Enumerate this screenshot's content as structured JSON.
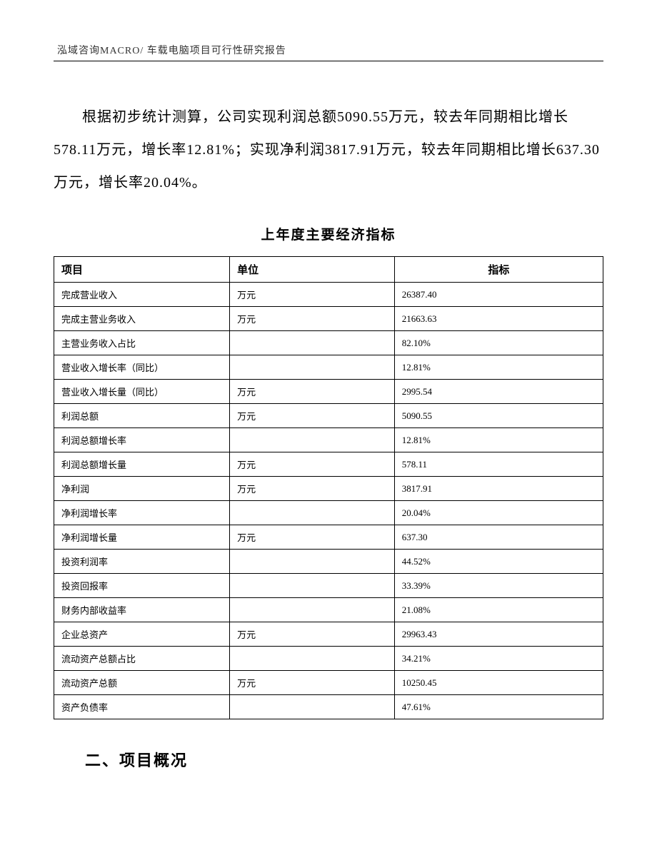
{
  "header": {
    "text": "泓域咨询MACRO/    车载电脑项目可行性研究报告"
  },
  "paragraph": {
    "text": "根据初步统计测算，公司实现利润总额5090.55万元，较去年同期相比增长578.11万元，增长率12.81%；实现净利润3817.91万元，较去年同期相比增长637.30万元，增长率20.04%。"
  },
  "table": {
    "title": "上年度主要经济指标",
    "type": "table",
    "columns": [
      {
        "key": "item",
        "label": "项目"
      },
      {
        "key": "unit",
        "label": "单位"
      },
      {
        "key": "value",
        "label": "指标"
      }
    ],
    "fontsize_header": 15,
    "fontsize_body": 13,
    "border_color": "#000000",
    "background_color": "#ffffff",
    "rows": [
      {
        "item": "完成营业收入",
        "unit": "万元",
        "value": "26387.40"
      },
      {
        "item": "完成主营业务收入",
        "unit": "万元",
        "value": "21663.63"
      },
      {
        "item": "主营业务收入占比",
        "unit": "",
        "value": "82.10%"
      },
      {
        "item": "营业收入增长率（同比）",
        "unit": "",
        "value": "12.81%"
      },
      {
        "item": "营业收入增长量（同比）",
        "unit": "万元",
        "value": "2995.54"
      },
      {
        "item": "利润总额",
        "unit": "万元",
        "value": "5090.55"
      },
      {
        "item": "利润总额增长率",
        "unit": "",
        "value": "12.81%"
      },
      {
        "item": "利润总额增长量",
        "unit": "万元",
        "value": "578.11"
      },
      {
        "item": "净利润",
        "unit": "万元",
        "value": "3817.91"
      },
      {
        "item": "净利润增长率",
        "unit": "",
        "value": "20.04%"
      },
      {
        "item": "净利润增长量",
        "unit": "万元",
        "value": "637.30"
      },
      {
        "item": "投资利润率",
        "unit": "",
        "value": "44.52%"
      },
      {
        "item": "投资回报率",
        "unit": "",
        "value": "33.39%"
      },
      {
        "item": "财务内部收益率",
        "unit": "",
        "value": "21.08%"
      },
      {
        "item": "企业总资产",
        "unit": "万元",
        "value": "29963.43"
      },
      {
        "item": "流动资产总额占比",
        "unit": "",
        "value": "34.21%"
      },
      {
        "item": "流动资产总额",
        "unit": "万元",
        "value": "10250.45"
      },
      {
        "item": "资产负债率",
        "unit": "",
        "value": "47.61%"
      }
    ]
  },
  "section": {
    "heading": "二、项目概况"
  }
}
